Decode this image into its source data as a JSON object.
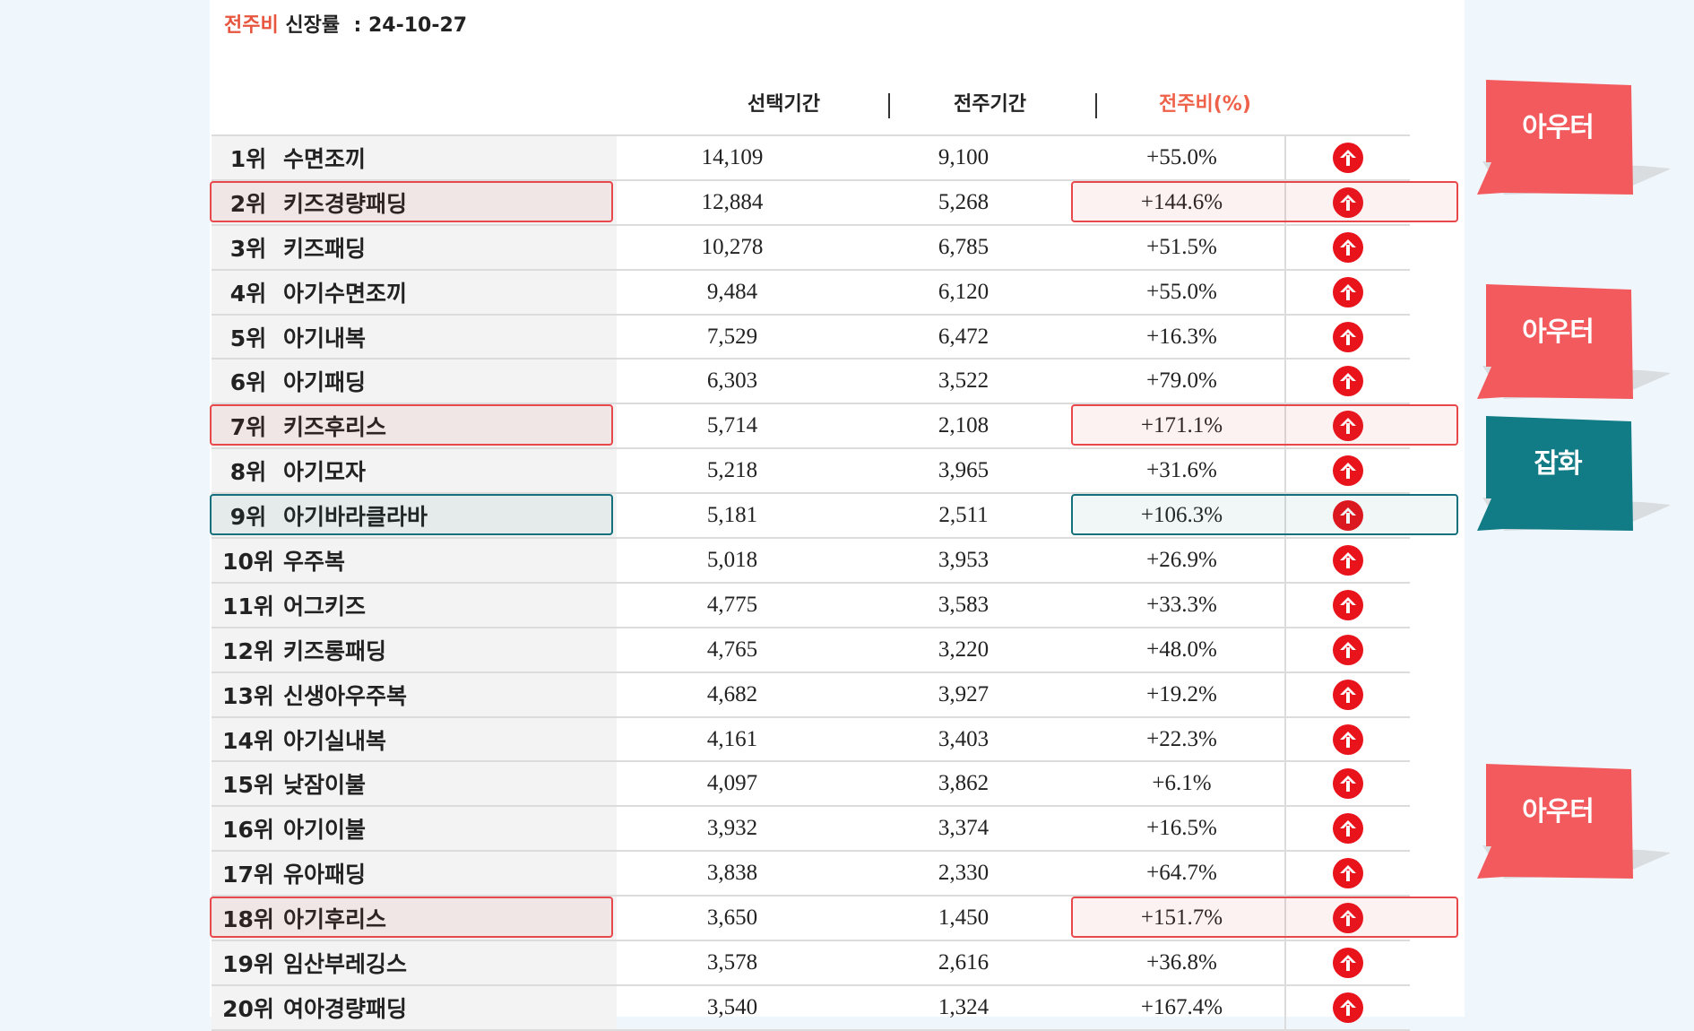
{
  "header": {
    "title_accent": "전주비",
    "title_rest": "신장률",
    "title_date": "24-10-27",
    "col_selected": "선택기간",
    "col_previous": "전주기간",
    "col_ratio": "전주비(%)"
  },
  "colors": {
    "accent": "#ef6149",
    "highlight_red": "#e8484b",
    "highlight_teal": "#14707c",
    "callout_red": "#f35a5e",
    "callout_teal": "#127c86",
    "up_icon": "#e8131b"
  },
  "icon": "up-arrow-circle-icon",
  "rows": [
    {
      "rank": "1위",
      "name": "수면조끼",
      "selected": "14,109",
      "previous": "9,100",
      "ratio": "+55.0%"
    },
    {
      "rank": "2위",
      "name": "키즈경량패딩",
      "selected": "12,884",
      "previous": "5,268",
      "ratio": "+144.6%"
    },
    {
      "rank": "3위",
      "name": "키즈패딩",
      "selected": "10,278",
      "previous": "6,785",
      "ratio": "+51.5%"
    },
    {
      "rank": "4위",
      "name": "아기수면조끼",
      "selected": "9,484",
      "previous": "6,120",
      "ratio": "+55.0%"
    },
    {
      "rank": "5위",
      "name": "아기내복",
      "selected": "7,529",
      "previous": "6,472",
      "ratio": "+16.3%"
    },
    {
      "rank": "6위",
      "name": "아기패딩",
      "selected": "6,303",
      "previous": "3,522",
      "ratio": "+79.0%"
    },
    {
      "rank": "7위",
      "name": "키즈후리스",
      "selected": "5,714",
      "previous": "2,108",
      "ratio": "+171.1%"
    },
    {
      "rank": "8위",
      "name": "아기모자",
      "selected": "5,218",
      "previous": "3,965",
      "ratio": "+31.6%"
    },
    {
      "rank": "9위",
      "name": "아기바라클라바",
      "selected": "5,181",
      "previous": "2,511",
      "ratio": "+106.3%"
    },
    {
      "rank": "10위",
      "name": "우주복",
      "selected": "5,018",
      "previous": "3,953",
      "ratio": "+26.9%"
    },
    {
      "rank": "11위",
      "name": "어그키즈",
      "selected": "4,775",
      "previous": "3,583",
      "ratio": "+33.3%"
    },
    {
      "rank": "12위",
      "name": "키즈롱패딩",
      "selected": "4,765",
      "previous": "3,220",
      "ratio": "+48.0%"
    },
    {
      "rank": "13위",
      "name": "신생아우주복",
      "selected": "4,682",
      "previous": "3,927",
      "ratio": "+19.2%"
    },
    {
      "rank": "14위",
      "name": "아기실내복",
      "selected": "4,161",
      "previous": "3,403",
      "ratio": "+22.3%"
    },
    {
      "rank": "15위",
      "name": "낮잠이불",
      "selected": "4,097",
      "previous": "3,862",
      "ratio": "+6.1%"
    },
    {
      "rank": "16위",
      "name": "아기이불",
      "selected": "3,932",
      "previous": "3,374",
      "ratio": "+16.5%"
    },
    {
      "rank": "17위",
      "name": "유아패딩",
      "selected": "3,838",
      "previous": "2,330",
      "ratio": "+64.7%"
    },
    {
      "rank": "18위",
      "name": "아기후리스",
      "selected": "3,650",
      "previous": "1,450",
      "ratio": "+151.7%"
    },
    {
      "rank": "19위",
      "name": "임산부레깅스",
      "selected": "3,578",
      "previous": "2,616",
      "ratio": "+36.8%"
    },
    {
      "rank": "20위",
      "name": "여아경량패딩",
      "selected": "3,540",
      "previous": "1,324",
      "ratio": "+167.4%"
    }
  ],
  "callouts": [
    {
      "label": "아우터",
      "color": "red"
    },
    {
      "label": "아우터",
      "color": "red"
    },
    {
      "label": "잡화",
      "color": "teal"
    },
    {
      "label": "아우터",
      "color": "red"
    }
  ]
}
